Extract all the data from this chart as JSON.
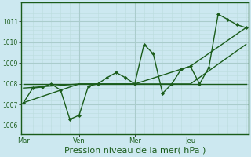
{
  "background_color": "#cce8f0",
  "grid_color_major": "#aacccc",
  "grid_color_minor": "#bbdddd",
  "line_color": "#1a5c1a",
  "marker_color": "#1a5c1a",
  "xlabel": "Pression niveau de la mer( hPa )",
  "xlabel_fontsize": 8,
  "yticks": [
    1006,
    1007,
    1008,
    1009,
    1010,
    1011
  ],
  "ylim": [
    1005.6,
    1011.9
  ],
  "xlim": [
    -1,
    97
  ],
  "xtick_labels": [
    "Mar",
    "Ven",
    "Mer",
    "Jeu"
  ],
  "xtick_positions": [
    0,
    24,
    48,
    72
  ],
  "vline_positions": [
    0,
    24,
    48,
    72
  ],
  "series": [
    {
      "x": [
        0,
        4,
        8,
        12,
        16,
        20,
        24,
        28,
        32,
        36,
        40,
        44,
        48,
        52,
        56,
        60,
        64,
        68,
        72,
        76,
        80,
        84,
        88,
        92,
        96
      ],
      "y": [
        1007.1,
        1007.8,
        1007.85,
        1008.0,
        1007.7,
        1006.3,
        1006.5,
        1007.9,
        1008.0,
        1008.3,
        1008.55,
        1008.3,
        1008.0,
        1009.9,
        1009.45,
        1007.55,
        1008.0,
        1008.7,
        1008.85,
        1008.0,
        1008.8,
        1011.35,
        1011.1,
        1010.85,
        1010.7
      ],
      "marker": "D",
      "markersize": 2.0,
      "linewidth": 1.0,
      "zorder": 5
    },
    {
      "x": [
        0,
        24,
        48,
        72,
        96
      ],
      "y": [
        1007.8,
        1008.0,
        1008.0,
        1008.0,
        1009.9
      ],
      "marker": null,
      "linewidth": 1.0,
      "zorder": 3
    },
    {
      "x": [
        0,
        24,
        48,
        72,
        96
      ],
      "y": [
        1007.1,
        1008.0,
        1008.0,
        1008.85,
        1010.7
      ],
      "marker": null,
      "linewidth": 1.0,
      "zorder": 3
    },
    {
      "x": [
        0,
        24,
        48,
        60,
        72,
        96
      ],
      "y": [
        1008.0,
        1008.0,
        1008.0,
        1008.0,
        1008.0,
        1008.0
      ],
      "marker": null,
      "linewidth": 1.0,
      "zorder": 3
    }
  ]
}
